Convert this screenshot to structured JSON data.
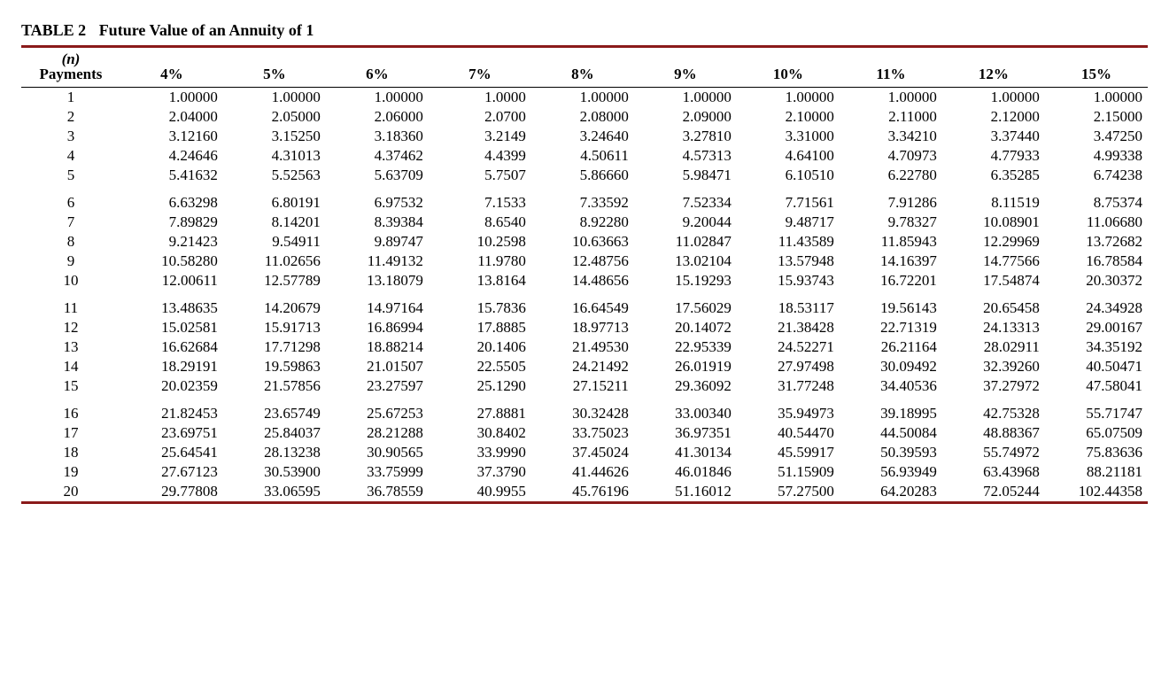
{
  "title_label": "TABLE 2",
  "title_text": "Future Value of an Annuity of 1",
  "header": {
    "payments_n": "(n)",
    "payments_word": "Payments",
    "rates": [
      "4%",
      "5%",
      "6%",
      "7%",
      "8%",
      "9%",
      "10%",
      "11%",
      "12%",
      "15%"
    ]
  },
  "group_size": 5,
  "colors": {
    "rule": "#8a1a1a",
    "thin_rule": "#000000",
    "text": "#000000",
    "background": "#ffffff"
  },
  "fonts": {
    "family": "Times New Roman, serif",
    "title_size_pt": 14,
    "body_size_pt": 12
  },
  "rows": [
    {
      "n": "1",
      "v": [
        "1.00000",
        "1.00000",
        "1.00000",
        "1.0000",
        "1.00000",
        "1.00000",
        "1.00000",
        "1.00000",
        "1.00000",
        "1.00000"
      ]
    },
    {
      "n": "2",
      "v": [
        "2.04000",
        "2.05000",
        "2.06000",
        "2.0700",
        "2.08000",
        "2.09000",
        "2.10000",
        "2.11000",
        "2.12000",
        "2.15000"
      ]
    },
    {
      "n": "3",
      "v": [
        "3.12160",
        "3.15250",
        "3.18360",
        "3.2149",
        "3.24640",
        "3.27810",
        "3.31000",
        "3.34210",
        "3.37440",
        "3.47250"
      ]
    },
    {
      "n": "4",
      "v": [
        "4.24646",
        "4.31013",
        "4.37462",
        "4.4399",
        "4.50611",
        "4.57313",
        "4.64100",
        "4.70973",
        "4.77933",
        "4.99338"
      ]
    },
    {
      "n": "5",
      "v": [
        "5.41632",
        "5.52563",
        "5.63709",
        "5.7507",
        "5.86660",
        "5.98471",
        "6.10510",
        "6.22780",
        "6.35285",
        "6.74238"
      ]
    },
    {
      "n": "6",
      "v": [
        "6.63298",
        "6.80191",
        "6.97532",
        "7.1533",
        "7.33592",
        "7.52334",
        "7.71561",
        "7.91286",
        "8.11519",
        "8.75374"
      ]
    },
    {
      "n": "7",
      "v": [
        "7.89829",
        "8.14201",
        "8.39384",
        "8.6540",
        "8.92280",
        "9.20044",
        "9.48717",
        "9.78327",
        "10.08901",
        "11.06680"
      ]
    },
    {
      "n": "8",
      "v": [
        "9.21423",
        "9.54911",
        "9.89747",
        "10.2598",
        "10.63663",
        "11.02847",
        "11.43589",
        "11.85943",
        "12.29969",
        "13.72682"
      ]
    },
    {
      "n": "9",
      "v": [
        "10.58280",
        "11.02656",
        "11.49132",
        "11.9780",
        "12.48756",
        "13.02104",
        "13.57948",
        "14.16397",
        "14.77566",
        "16.78584"
      ]
    },
    {
      "n": "10",
      "v": [
        "12.00611",
        "12.57789",
        "13.18079",
        "13.8164",
        "14.48656",
        "15.19293",
        "15.93743",
        "16.72201",
        "17.54874",
        "20.30372"
      ]
    },
    {
      "n": "11",
      "v": [
        "13.48635",
        "14.20679",
        "14.97164",
        "15.7836",
        "16.64549",
        "17.56029",
        "18.53117",
        "19.56143",
        "20.65458",
        "24.34928"
      ]
    },
    {
      "n": "12",
      "v": [
        "15.02581",
        "15.91713",
        "16.86994",
        "17.8885",
        "18.97713",
        "20.14072",
        "21.38428",
        "22.71319",
        "24.13313",
        "29.00167"
      ]
    },
    {
      "n": "13",
      "v": [
        "16.62684",
        "17.71298",
        "18.88214",
        "20.1406",
        "21.49530",
        "22.95339",
        "24.52271",
        "26.21164",
        "28.02911",
        "34.35192"
      ]
    },
    {
      "n": "14",
      "v": [
        "18.29191",
        "19.59863",
        "21.01507",
        "22.5505",
        "24.21492",
        "26.01919",
        "27.97498",
        "30.09492",
        "32.39260",
        "40.50471"
      ]
    },
    {
      "n": "15",
      "v": [
        "20.02359",
        "21.57856",
        "23.27597",
        "25.1290",
        "27.15211",
        "29.36092",
        "31.77248",
        "34.40536",
        "37.27972",
        "47.58041"
      ]
    },
    {
      "n": "16",
      "v": [
        "21.82453",
        "23.65749",
        "25.67253",
        "27.8881",
        "30.32428",
        "33.00340",
        "35.94973",
        "39.18995",
        "42.75328",
        "55.71747"
      ]
    },
    {
      "n": "17",
      "v": [
        "23.69751",
        "25.84037",
        "28.21288",
        "30.8402",
        "33.75023",
        "36.97351",
        "40.54470",
        "44.50084",
        "48.88367",
        "65.07509"
      ]
    },
    {
      "n": "18",
      "v": [
        "25.64541",
        "28.13238",
        "30.90565",
        "33.9990",
        "37.45024",
        "41.30134",
        "45.59917",
        "50.39593",
        "55.74972",
        "75.83636"
      ]
    },
    {
      "n": "19",
      "v": [
        "27.67123",
        "30.53900",
        "33.75999",
        "37.3790",
        "41.44626",
        "46.01846",
        "51.15909",
        "56.93949",
        "63.43968",
        "88.21181"
      ]
    },
    {
      "n": "20",
      "v": [
        "29.77808",
        "33.06595",
        "36.78559",
        "40.9955",
        "45.76196",
        "51.16012",
        "57.27500",
        "64.20283",
        "72.05244",
        "102.44358"
      ]
    }
  ]
}
